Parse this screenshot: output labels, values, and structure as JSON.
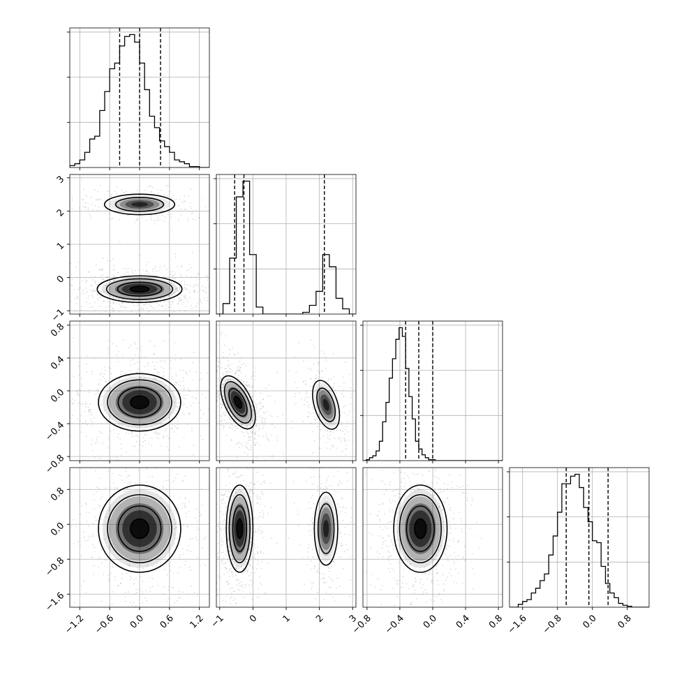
{
  "chart_data": {
    "type": "corner",
    "grid": true,
    "hist_color": "#000000",
    "contour_color": "#000000",
    "density_color": "#000000",
    "point_color": "#808080",
    "params": [
      {
        "range": [
          -1.4,
          1.4
        ],
        "ticks": [
          "−1.2",
          "−0.6",
          "0.0",
          "0.6",
          "1.2"
        ],
        "tick_values": [
          -1.2,
          -0.6,
          0.0,
          0.6,
          1.2
        ],
        "quantiles": [
          -0.4,
          0.0,
          0.42
        ],
        "hist": {
          "edges_start": -1.4,
          "bin_width": 0.1,
          "counts": [
            0.2,
            0.4,
            0.8,
            1.6,
            3.0,
            3.3,
            6.0,
            8.0,
            10.4,
            11.0,
            12.8,
            13.8,
            14.0,
            13.2,
            11.0,
            8.2,
            5.4,
            4.2,
            2.8,
            2.2,
            1.6,
            0.8,
            0.6,
            0.4,
            0.1,
            0.1,
            0,
            0
          ]
        }
      },
      {
        "range": [
          -1.1,
          3.1
        ],
        "ticks": [
          "−1",
          "0",
          "1",
          "2",
          "3"
        ],
        "tick_values": [
          -1,
          0,
          1,
          2,
          3
        ],
        "quantiles": [
          -0.55,
          -0.27,
          2.15
        ],
        "hist": {
          "edges_start": -1.1,
          "bin_width": 0.2,
          "counts": [
            0,
            0.6,
            3.2,
            6.7,
            7.6,
            3.4,
            0.4,
            0,
            0,
            0,
            0,
            0,
            0,
            0.1,
            0.5,
            1.3,
            3.4,
            2.7,
            0.9,
            0.3,
            0
          ]
        }
      },
      {
        "range": [
          -0.85,
          0.85
        ],
        "ticks": [
          "−0.8",
          "−0.4",
          "0.0",
          "0.4",
          "0.8"
        ],
        "tick_values": [
          -0.8,
          -0.4,
          0.0,
          0.4,
          0.8
        ],
        "quantiles": [
          -0.33,
          -0.17,
          0.0
        ],
        "hist": {
          "edges_start": -0.85,
          "bin_width": 0.04,
          "counts": [
            0,
            0.1,
            0.3,
            0.5,
            1.0,
            2.0,
            4.0,
            6.0,
            8.5,
            10.5,
            12.5,
            13.7,
            12.8,
            9.5,
            6.6,
            4.3,
            2.0,
            1.2,
            0.6,
            0.3,
            0.1,
            0.1,
            0,
            0,
            0,
            0,
            0,
            0,
            0,
            0,
            0,
            0,
            0,
            0,
            0,
            0,
            0,
            0,
            0,
            0,
            0,
            0,
            0
          ]
        }
      },
      {
        "range": [
          -1.9,
          1.3
        ],
        "ticks": [
          "−1.6",
          "−0.8",
          "0.0",
          "0.8"
        ],
        "tick_values": [
          -1.6,
          -0.8,
          0.0,
          0.8
        ],
        "quantiles": [
          -0.6,
          -0.08,
          0.36
        ],
        "hist": {
          "edges_start": -1.9,
          "bin_width": 0.1,
          "counts": [
            0,
            0,
            0.3,
            0.6,
            0.8,
            1.5,
            2.0,
            2.8,
            3.5,
            5.5,
            7.5,
            10.0,
            13.0,
            13.0,
            13.8,
            14.0,
            12.6,
            10.5,
            9.0,
            7.0,
            6.8,
            4.3,
            2.5,
            1.5,
            1.0,
            0.4,
            0.2,
            0.1,
            0,
            0,
            0,
            0
          ]
        }
      }
    ],
    "joint": [
      {
        "i": 1,
        "j": 0,
        "clusters": [
          {
            "cx": 0.0,
            "cy": 2.2,
            "sx": 0.32,
            "sy": 0.14,
            "w": 0.35
          },
          {
            "cx": 0.0,
            "cy": -0.35,
            "sx": 0.34,
            "sy": 0.16,
            "w": 1.0
          }
        ]
      },
      {
        "i": 2,
        "j": 0,
        "clusters": [
          {
            "cx": 0.0,
            "cy": -0.14,
            "sx": 0.33,
            "sy": 0.14,
            "w": 1.0
          }
        ]
      },
      {
        "i": 2,
        "j": 1,
        "clusters": [
          {
            "cx": -0.45,
            "cy": -0.14,
            "sx": 0.16,
            "sy": 0.14,
            "w": 1.0,
            "rot": -0.45
          },
          {
            "cx": 2.2,
            "cy": -0.17,
            "sx": 0.16,
            "sy": 0.14,
            "w": 0.45,
            "rot": -0.3
          }
        ]
      },
      {
        "i": 3,
        "j": 0,
        "clusters": [
          {
            "cx": 0.0,
            "cy": -0.1,
            "sx": 0.33,
            "sy": 0.4,
            "w": 1.0
          }
        ]
      },
      {
        "i": 3,
        "j": 1,
        "clusters": [
          {
            "cx": -0.4,
            "cy": -0.1,
            "sx": 0.16,
            "sy": 0.4,
            "w": 1.0
          },
          {
            "cx": 2.2,
            "cy": -0.1,
            "sx": 0.16,
            "sy": 0.38,
            "w": 0.45
          }
        ]
      },
      {
        "i": 3,
        "j": 2,
        "clusters": [
          {
            "cx": -0.15,
            "cy": -0.1,
            "sx": 0.13,
            "sy": 0.4,
            "w": 1.0
          }
        ]
      }
    ]
  }
}
